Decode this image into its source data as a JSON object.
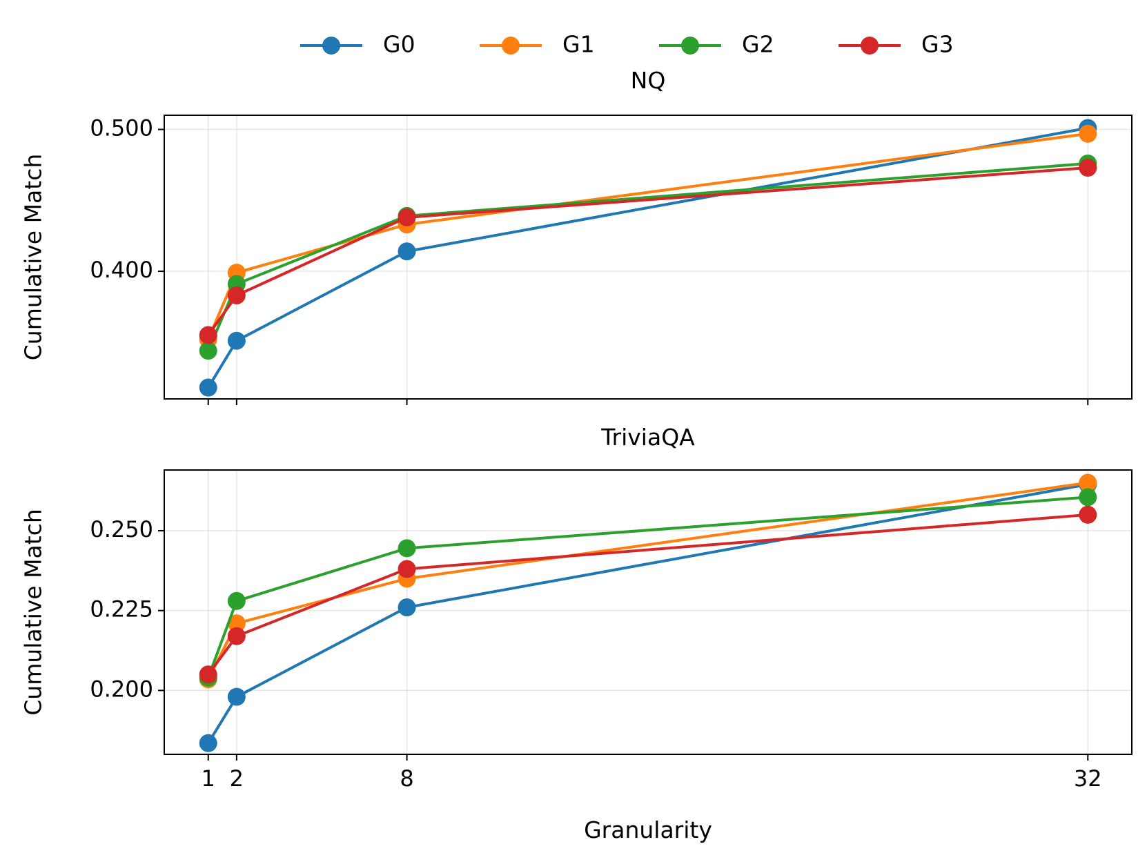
{
  "chart_data": [
    {
      "type": "line",
      "title": "NQ",
      "xlabel": "",
      "ylabel": "Cumulative Match",
      "x": [
        1,
        2,
        8,
        32
      ],
      "xticks": [
        1,
        2,
        8,
        32
      ],
      "xtick_labels_visible": false,
      "xlim": [
        -0.55,
        33.55
      ],
      "ylim": [
        0.31,
        0.51
      ],
      "yticks": [
        0.4,
        0.5
      ],
      "ytick_labels": [
        "0.400",
        "0.500"
      ],
      "grid": true,
      "series": [
        {
          "name": "G0",
          "color": "#1f77b4",
          "values": [
            0.318,
            0.351,
            0.414,
            0.501
          ]
        },
        {
          "name": "G1",
          "color": "#ff7f0e",
          "values": [
            0.352,
            0.399,
            0.433,
            0.497
          ]
        },
        {
          "name": "G2",
          "color": "#2ca02c",
          "values": [
            0.344,
            0.391,
            0.439,
            0.476
          ]
        },
        {
          "name": "G3",
          "color": "#d62728",
          "values": [
            0.355,
            0.383,
            0.438,
            0.473
          ]
        }
      ]
    },
    {
      "type": "line",
      "title": "TriviaQA",
      "xlabel": "Granularity",
      "ylabel": "Cumulative Match",
      "x": [
        1,
        2,
        8,
        32
      ],
      "xticks": [
        1,
        2,
        8,
        32
      ],
      "xtick_labels": [
        "1",
        "2",
        "8",
        "32"
      ],
      "xtick_labels_visible": true,
      "xlim": [
        -0.55,
        33.55
      ],
      "ylim": [
        0.18,
        0.269
      ],
      "yticks": [
        0.2,
        0.225,
        0.25
      ],
      "ytick_labels": [
        "0.200",
        "0.225",
        "0.250"
      ],
      "grid": true,
      "series": [
        {
          "name": "G0",
          "color": "#1f77b4",
          "values": [
            0.1835,
            0.198,
            0.226,
            0.2645
          ]
        },
        {
          "name": "G1",
          "color": "#ff7f0e",
          "values": [
            0.2035,
            0.221,
            0.235,
            0.265
          ]
        },
        {
          "name": "G2",
          "color": "#2ca02c",
          "values": [
            0.204,
            0.228,
            0.2445,
            0.2605
          ]
        },
        {
          "name": "G3",
          "color": "#d62728",
          "values": [
            0.205,
            0.217,
            0.238,
            0.255
          ]
        }
      ]
    }
  ],
  "legend": {
    "placement": "top-center",
    "entries": [
      {
        "name": "G0",
        "color": "#1f77b4"
      },
      {
        "name": "G1",
        "color": "#ff7f0e"
      },
      {
        "name": "G2",
        "color": "#2ca02c"
      },
      {
        "name": "G3",
        "color": "#d62728"
      }
    ]
  }
}
